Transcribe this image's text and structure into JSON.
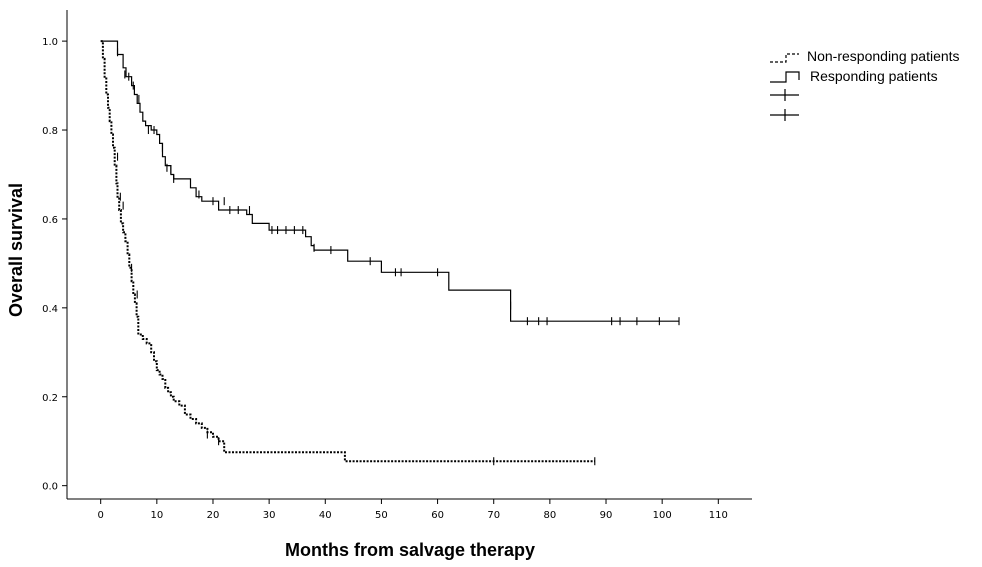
{
  "chart_data": {
    "type": "line",
    "xlabel": "Months from salvage therapy",
    "ylabel": "Overall survival",
    "xlim": [
      -6,
      116
    ],
    "ylim": [
      -0.03,
      1.07
    ],
    "x_ticks": [
      0,
      10,
      20,
      30,
      40,
      50,
      60,
      70,
      80,
      90,
      100,
      110
    ],
    "y_ticks": [
      "0.0",
      "0.2",
      "0.4",
      "0.6",
      "0.8",
      "1.0"
    ],
    "grid": false,
    "legend_position": "top-right",
    "legend": [
      {
        "label": "Non-responding patients",
        "style": "dashed"
      },
      {
        "label": "Responding patients",
        "style": "solid"
      },
      {
        "label": "",
        "style": "censor"
      },
      {
        "label": "",
        "style": "censor"
      }
    ],
    "series": [
      {
        "name": "Non-responding patients",
        "style": "dashed",
        "steps": [
          [
            0,
            1.0
          ],
          [
            0.4,
            0.96
          ],
          [
            0.7,
            0.92
          ],
          [
            1.0,
            0.88
          ],
          [
            1.3,
            0.85
          ],
          [
            1.6,
            0.82
          ],
          [
            1.9,
            0.79
          ],
          [
            2.2,
            0.76
          ],
          [
            2.5,
            0.72
          ],
          [
            2.8,
            0.68
          ],
          [
            3.0,
            0.65
          ],
          [
            3.3,
            0.62
          ],
          [
            3.6,
            0.59
          ],
          [
            4.0,
            0.57
          ],
          [
            4.4,
            0.55
          ],
          [
            4.8,
            0.52
          ],
          [
            5.1,
            0.49
          ],
          [
            5.5,
            0.46
          ],
          [
            5.8,
            0.43
          ],
          [
            6.1,
            0.41
          ],
          [
            6.4,
            0.38
          ],
          [
            6.7,
            0.34
          ],
          [
            7.5,
            0.33
          ],
          [
            8.2,
            0.32
          ],
          [
            9.0,
            0.3
          ],
          [
            9.5,
            0.28
          ],
          [
            10.0,
            0.26
          ],
          [
            10.5,
            0.25
          ],
          [
            11.0,
            0.24
          ],
          [
            11.5,
            0.22
          ],
          [
            12.0,
            0.21
          ],
          [
            12.5,
            0.2
          ],
          [
            13.0,
            0.19
          ],
          [
            14.0,
            0.18
          ],
          [
            15.0,
            0.16
          ],
          [
            16.0,
            0.15
          ],
          [
            17.0,
            0.14
          ],
          [
            18.0,
            0.13
          ],
          [
            19.0,
            0.12
          ],
          [
            20.0,
            0.11
          ],
          [
            21.0,
            0.1
          ],
          [
            22.0,
            0.075
          ],
          [
            43.5,
            0.055
          ],
          [
            88,
            0.055
          ]
        ],
        "censors": [
          [
            3.0,
            0.74
          ],
          [
            3.5,
            0.65
          ],
          [
            4.0,
            0.63
          ],
          [
            5.5,
            0.49
          ],
          [
            6.5,
            0.43
          ],
          [
            19.0,
            0.115
          ],
          [
            21.0,
            0.1
          ],
          [
            70,
            0.055
          ],
          [
            88,
            0.055
          ]
        ]
      },
      {
        "name": "Responding patients",
        "style": "solid",
        "steps": [
          [
            0,
            1.0
          ],
          [
            3.0,
            0.97
          ],
          [
            4.0,
            0.94
          ],
          [
            4.5,
            0.92
          ],
          [
            5.5,
            0.9
          ],
          [
            6.0,
            0.88
          ],
          [
            6.5,
            0.86
          ],
          [
            7.0,
            0.84
          ],
          [
            7.5,
            0.82
          ],
          [
            8.0,
            0.81
          ],
          [
            9.0,
            0.8
          ],
          [
            10.0,
            0.79
          ],
          [
            10.5,
            0.77
          ],
          [
            11.0,
            0.74
          ],
          [
            11.5,
            0.72
          ],
          [
            12.5,
            0.7
          ],
          [
            13.0,
            0.69
          ],
          [
            16.0,
            0.67
          ],
          [
            17.0,
            0.65
          ],
          [
            18.0,
            0.64
          ],
          [
            21.0,
            0.62
          ],
          [
            26.0,
            0.61
          ],
          [
            27.0,
            0.59
          ],
          [
            30.0,
            0.575
          ],
          [
            36.5,
            0.56
          ],
          [
            37.5,
            0.54
          ],
          [
            38.0,
            0.53
          ],
          [
            44.0,
            0.505
          ],
          [
            50.0,
            0.48
          ],
          [
            62.0,
            0.44
          ],
          [
            73.0,
            0.37
          ],
          [
            103,
            0.37
          ]
        ],
        "censors": [
          [
            3.0,
            0.975
          ],
          [
            4.3,
            0.925
          ],
          [
            5.0,
            0.92
          ],
          [
            5.8,
            0.9
          ],
          [
            6.8,
            0.87
          ],
          [
            8.5,
            0.8
          ],
          [
            9.5,
            0.8
          ],
          [
            11.0,
            0.76
          ],
          [
            11.8,
            0.715
          ],
          [
            12.5,
            0.71
          ],
          [
            13.0,
            0.69
          ],
          [
            17.5,
            0.655
          ],
          [
            20.0,
            0.64
          ],
          [
            22.0,
            0.64
          ],
          [
            23.0,
            0.62
          ],
          [
            24.5,
            0.62
          ],
          [
            26.5,
            0.62
          ],
          [
            30.5,
            0.575
          ],
          [
            31.5,
            0.575
          ],
          [
            33.0,
            0.575
          ],
          [
            34.5,
            0.575
          ],
          [
            36.0,
            0.575
          ],
          [
            38.0,
            0.535
          ],
          [
            41.0,
            0.53
          ],
          [
            48.0,
            0.505
          ],
          [
            52.5,
            0.48
          ],
          [
            53.5,
            0.48
          ],
          [
            60.0,
            0.48
          ],
          [
            73.0,
            0.405
          ],
          [
            76.0,
            0.37
          ],
          [
            78.0,
            0.37
          ],
          [
            79.5,
            0.37
          ],
          [
            91.0,
            0.37
          ],
          [
            92.5,
            0.37
          ],
          [
            95.5,
            0.37
          ],
          [
            99.5,
            0.37
          ],
          [
            103,
            0.37
          ]
        ]
      }
    ]
  }
}
